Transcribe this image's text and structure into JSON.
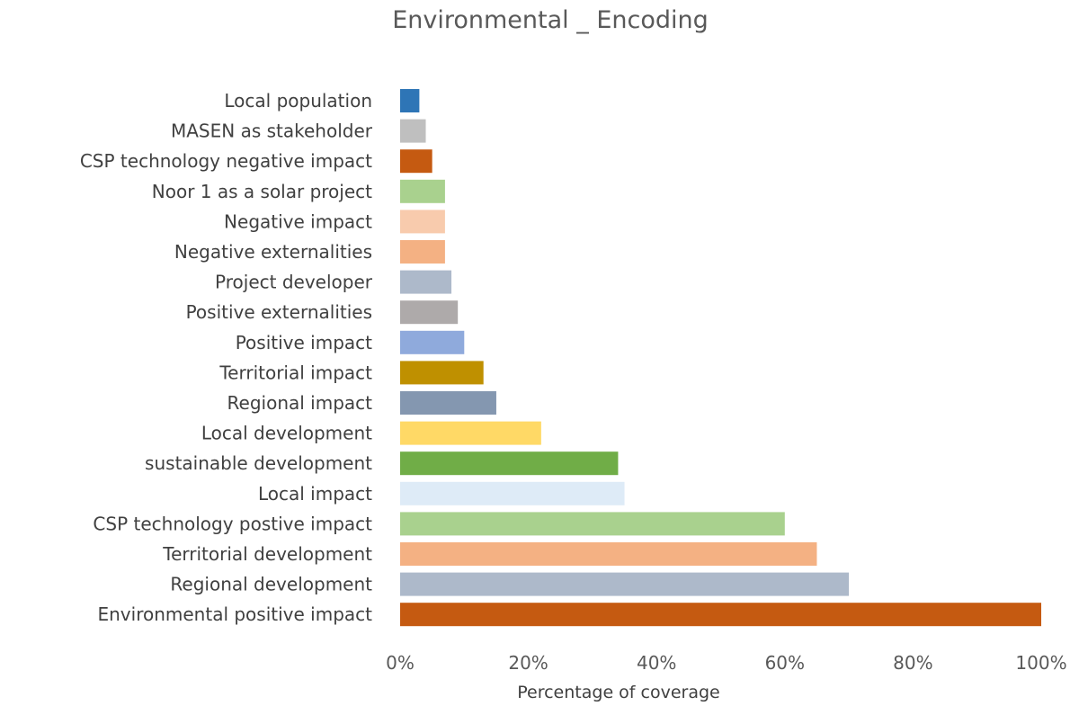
{
  "chart_data": {
    "type": "bar",
    "orientation": "horizontal",
    "title": "Environmental _ Encoding",
    "xlabel": "Percentage of coverage",
    "ylabel": "",
    "xlim": [
      0,
      100
    ],
    "x_ticks": [
      "0%",
      "20%",
      "40%",
      "60%",
      "80%",
      "100%"
    ],
    "grid": false,
    "legend": "none",
    "categories": [
      "Local population",
      "MASEN as stakeholder",
      "CSP technology negative impact",
      "Noor 1 as a solar project",
      "Negative impact",
      "Negative externalities",
      "Project developer",
      "Positive externalities",
      "Positive impact",
      "Territorial impact",
      "Regional impact",
      "Local development",
      "sustainable development",
      "Local impact",
      "CSP technology postive impact",
      "Territorial development",
      "Regional development",
      "Environmental positive impact"
    ],
    "values": [
      3,
      4,
      5,
      7,
      7,
      7,
      8,
      9,
      10,
      13,
      15,
      22,
      34,
      35,
      60,
      65,
      70,
      100
    ],
    "colors": [
      "#2E75B6",
      "#BFBFBF",
      "#C55A11",
      "#A9D18E",
      "#F8CBAD",
      "#F4B183",
      "#ADB9CA",
      "#AEAAAA",
      "#8FAADC",
      "#BF9000",
      "#8497B0",
      "#FFD966",
      "#70AD47",
      "#DEEBF7",
      "#A9D18E",
      "#F4B183",
      "#ADB9CA",
      "#C55A11"
    ]
  }
}
